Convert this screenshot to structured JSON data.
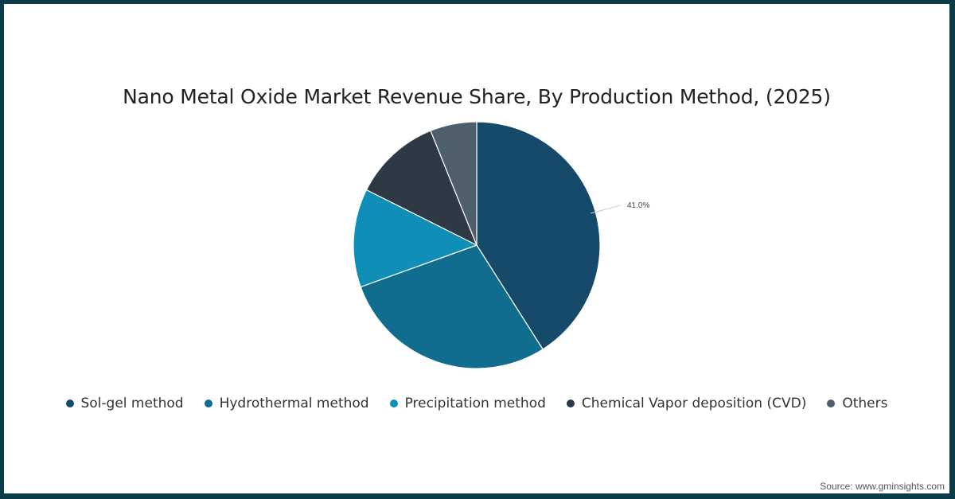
{
  "chart_data": {
    "type": "pie",
    "title": "Nano Metal Oxide Market Revenue Share, By Production Method, (2025)",
    "categories": [
      "Sol-gel method",
      "Hydrothermal method",
      "Precipitation method",
      "Chemical Vapor deposition (CVD)",
      "Others"
    ],
    "values": [
      41.0,
      28.5,
      12.9,
      11.5,
      6.1
    ],
    "colors": [
      "#154a6b",
      "#116d8e",
      "#0f8fb8",
      "#2d3a45",
      "#4e5f6b"
    ],
    "data_labels": [
      {
        "category": "Sol-gel method",
        "text": "41.0%"
      }
    ],
    "legend_position": "bottom",
    "start_angle": 0,
    "direction": "clockwise"
  },
  "title": "Nano Metal Oxide Market Revenue Share, By Production Method, (2025)",
  "legend": [
    {
      "label": "Sol-gel method",
      "color": "#154a6b"
    },
    {
      "label": "Hydrothermal method",
      "color": "#116d8e"
    },
    {
      "label": "Precipitation method",
      "color": "#0f8fb8"
    },
    {
      "label": "Chemical Vapor deposition (CVD)",
      "color": "#2d3a45"
    },
    {
      "label": "Others",
      "color": "#4e5f6b"
    }
  ],
  "source": "Source: www.gminsights.com",
  "border_color": "#0b3c4a"
}
